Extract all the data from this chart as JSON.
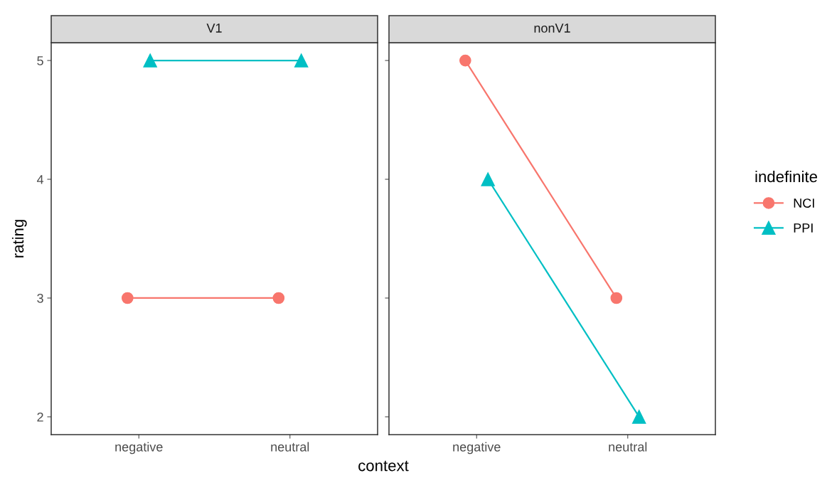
{
  "chart_data": [
    {
      "type": "line",
      "title": "V1",
      "ylabel": "rating",
      "xlabel": "context",
      "categories": [
        "negative",
        "neutral"
      ],
      "ylim": [
        1.85,
        5.15
      ],
      "yticks": [
        2,
        3,
        4,
        5
      ],
      "grid": false,
      "legend": "right",
      "legend_title": "indefinite",
      "series": [
        {
          "name": "NCI",
          "color": "#f8766d",
          "marker": "circle",
          "values": [
            3,
            3
          ]
        },
        {
          "name": "PPI",
          "color": "#00bfc4",
          "marker": "triangle",
          "values": [
            5,
            5
          ]
        }
      ]
    },
    {
      "type": "line",
      "title": "nonV1",
      "categories": [
        "negative",
        "neutral"
      ],
      "ylim": [
        1.85,
        5.15
      ],
      "yticks": [
        2,
        3,
        4,
        5
      ],
      "tick_labels": "x",
      "grid": false,
      "series": [
        {
          "name": "NCI",
          "color": "#f8766d",
          "marker": "circle",
          "values": [
            5,
            3
          ]
        },
        {
          "name": "PPI",
          "color": "#00bfc4",
          "marker": "triangle",
          "values": [
            4,
            2
          ]
        }
      ]
    }
  ]
}
